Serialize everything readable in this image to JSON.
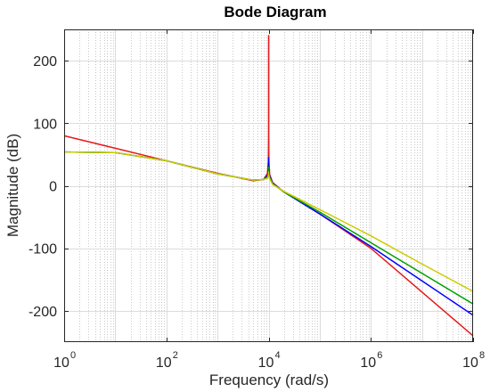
{
  "chart_data": {
    "type": "line",
    "title": "Bode Diagram",
    "xlabel": "Frequency  (rad/s)",
    "ylabel": "Magnitude (dB)",
    "x_scale": "log",
    "xlim": [
      1,
      100000000
    ],
    "ylim": [
      -250,
      250
    ],
    "x_ticks": [
      {
        "base": "10",
        "exp": "0",
        "value": 1
      },
      {
        "base": "10",
        "exp": "2",
        "value": 100
      },
      {
        "base": "10",
        "exp": "4",
        "value": 10000
      },
      {
        "base": "10",
        "exp": "6",
        "value": 1000000
      },
      {
        "base": "10",
        "exp": "8",
        "value": 100000000
      }
    ],
    "y_ticks": [
      {
        "label": "200",
        "value": 200
      },
      {
        "label": "100",
        "value": 100
      },
      {
        "label": "0",
        "value": 0
      },
      {
        "label": "-100",
        "value": -100
      },
      {
        "label": "-200",
        "value": -200
      }
    ],
    "grid": true,
    "series": [
      {
        "color": "#e41a1c",
        "x": [
          1,
          10,
          100,
          1000,
          5000,
          8000,
          9500,
          9900,
          9990,
          10000,
          10010,
          10100,
          10500,
          12000,
          20000,
          100000,
          1000000,
          10000000,
          100000000
        ],
        "y": [
          80,
          60,
          40,
          20,
          8,
          10,
          20,
          40,
          80,
          240,
          80,
          40,
          18,
          5,
          -10,
          -45,
          -100,
          -170,
          -240
        ]
      },
      {
        "color": "#0000ff",
        "x": [
          1,
          10,
          100,
          1000,
          5000,
          8000,
          9500,
          9900,
          9990,
          10000,
          10010,
          10100,
          10500,
          12000,
          20000,
          100000,
          1000000,
          10000000,
          100000000
        ],
        "y": [
          54,
          53,
          40,
          19,
          9,
          10,
          16,
          26,
          36,
          45,
          36,
          26,
          15,
          4,
          -10,
          -45,
          -97,
          -152,
          -207
        ]
      },
      {
        "color": "#00a000",
        "x": [
          1,
          10,
          100,
          1000,
          5000,
          8000,
          9500,
          9900,
          9990,
          10000,
          10010,
          10100,
          10500,
          12000,
          20000,
          100000,
          1000000,
          10000000,
          100000000
        ],
        "y": [
          54,
          53,
          40,
          19,
          9,
          10,
          14,
          20,
          26,
          30,
          26,
          20,
          13,
          3,
          -10,
          -42,
          -91,
          -140,
          -189
        ]
      },
      {
        "color": "#cccc00",
        "x": [
          1,
          10,
          100,
          1000,
          5000,
          8000,
          9500,
          9900,
          9990,
          10000,
          10010,
          10100,
          10500,
          12000,
          20000,
          100000,
          1000000,
          10000000,
          100000000
        ],
        "y": [
          54,
          53,
          40,
          19,
          9,
          10,
          12,
          16,
          19,
          22,
          19,
          16,
          11,
          2,
          -9,
          -38,
          -80,
          -125,
          -169
        ]
      }
    ]
  }
}
